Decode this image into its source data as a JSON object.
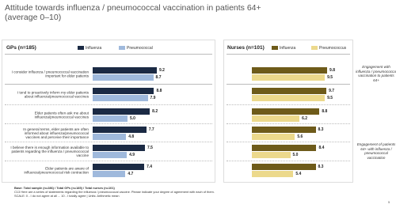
{
  "title": "Attitude towards influenza / pneumococcal vaccination in patients 64+ (average 0–10)",
  "chart_data": [
    {
      "type": "bar",
      "orientation": "horizontal",
      "title": "GPs (n=185)",
      "categories": [
        "I consider influenza / pneumococcal vaccination important for elder patients",
        "I tend to proactively inform my elder patients about influenza/pneumococcal vaccines",
        "Elder patients often ask me about influenza/pneumococcal vaccines",
        "In general terms, elder patients are often informed about influenza/pneumococcal vaccines and perceive their importance",
        "I believe there is enough information available to patients regarding the influenza / pneumococcal vaccine",
        "Elder patients are aware of influenza/pneumococcal risk contraction"
      ],
      "xlim": [
        0,
        10
      ],
      "series": [
        {
          "name": "Influenza",
          "color": "#1b2a44",
          "values": [
            9.2,
            8.8,
            8.2,
            7.7,
            7.5,
            7.4
          ],
          "value_labels": [
            "9.2",
            "8.8",
            "8.2",
            "7.7",
            "7.5",
            "7.4"
          ]
        },
        {
          "name": "Pneumococcal",
          "color": "#9fb9dc",
          "values": [
            8.7,
            7.9,
            5.0,
            4.8,
            4.9,
            4.7
          ],
          "value_labels": [
            "8.7",
            "7.9",
            "5.0",
            "4.8",
            "4.9",
            "4.7"
          ]
        }
      ]
    },
    {
      "type": "bar",
      "orientation": "horizontal",
      "title": "Nurses (n=101)",
      "xlim": [
        0,
        10
      ],
      "series": [
        {
          "name": "Influenza",
          "color": "#6e5b1a",
          "values": [
            9.8,
            9.7,
            8.8,
            8.3,
            8.4,
            8.3
          ],
          "value_labels": [
            "9.8",
            "9.7",
            "8.8",
            "8.3",
            "8.4",
            "8.3"
          ]
        },
        {
          "name": "Pneumococcus",
          "color": "#ecd98c",
          "values": [
            9.5,
            9.5,
            6.2,
            5.6,
            5.0,
            5.4
          ],
          "value_labels": [
            "9.5",
            "9.5",
            "6.2",
            "5.6",
            "5.0",
            "5.4"
          ]
        }
      ],
      "annotations": [
        "Engagement with influenza / pneumococcal vaccination to patients 64+",
        "Engagement of patients 64+ with influenza / pneumococcal vaccination"
      ]
    }
  ],
  "footnotes": [
    "Base: Total sample (n=286) / Total GPs (n=185) / Total nurses (n=101)",
    "C13 Here are a series of statements regarding the influenza / pneumococcal vaccine. Please indicate your degree of agreement with each of them.",
    "SCALE: 0 - I do not agree at all ... 10 - I totally agree | Units: Arithmetic mean"
  ],
  "page_number": "5"
}
